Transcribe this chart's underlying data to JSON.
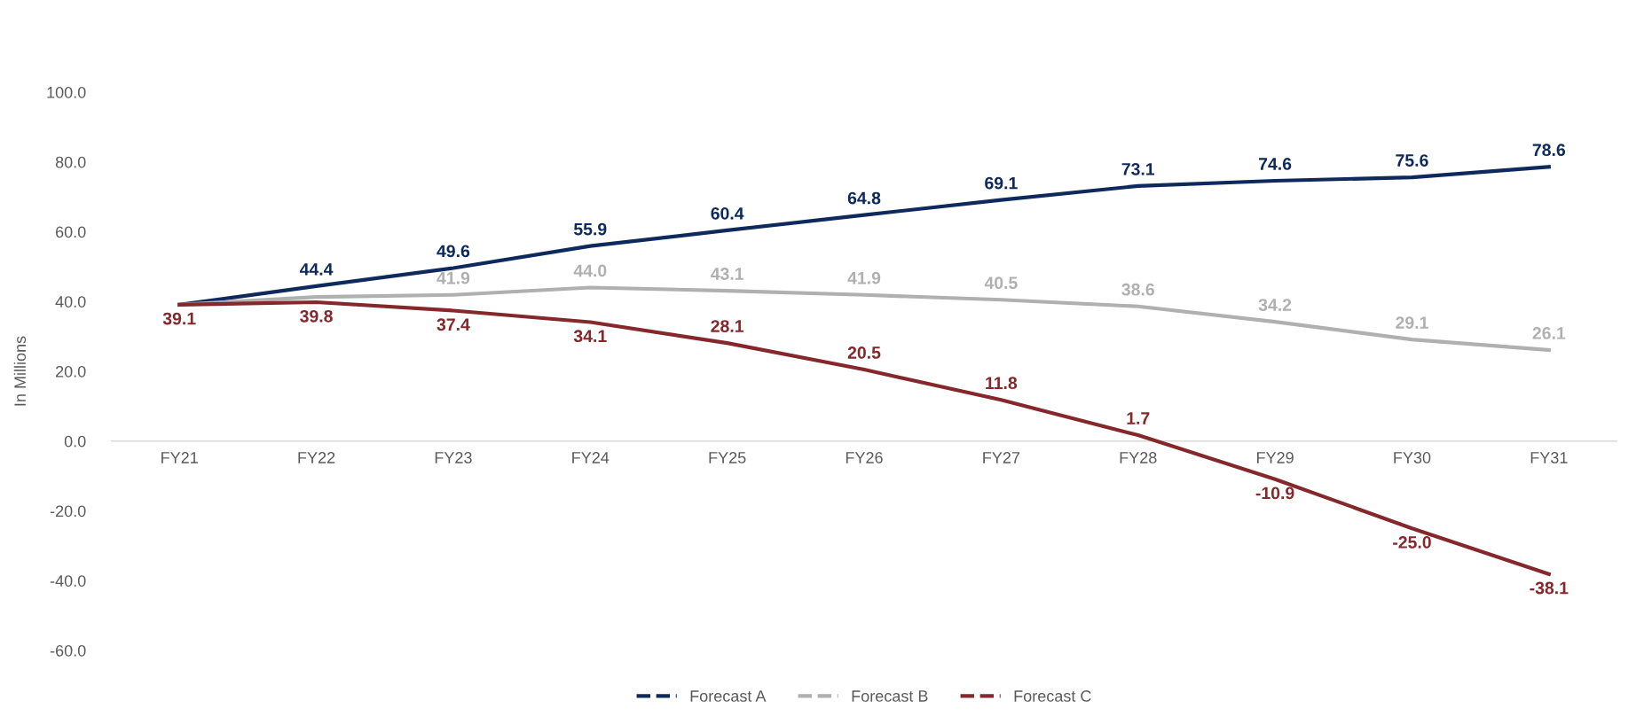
{
  "chart_data": {
    "type": "line",
    "ylabel": "In Millions",
    "categories": [
      "FY21",
      "FY22",
      "FY23",
      "FY24",
      "FY25",
      "FY26",
      "FY27",
      "FY28",
      "FY29",
      "FY30",
      "FY31"
    ],
    "series": [
      {
        "name": "Forecast A",
        "color": "#0e2a5c",
        "values": [
          39.1,
          44.4,
          49.6,
          55.9,
          60.4,
          64.8,
          69.1,
          73.1,
          74.6,
          75.6,
          78.6
        ],
        "value_labels": [
          null,
          "44.4",
          "49.6",
          "55.9",
          "60.4",
          "64.8",
          "69.1",
          "73.1",
          "74.6",
          "75.6",
          "78.6"
        ]
      },
      {
        "name": "Forecast B",
        "color": "#b0b0b0",
        "values": [
          39.1,
          41.3,
          41.9,
          44.0,
          43.1,
          41.9,
          40.5,
          38.6,
          34.2,
          29.1,
          26.1
        ],
        "value_labels": [
          null,
          null,
          "41.9",
          "44.0",
          "43.1",
          "41.9",
          "40.5",
          "38.6",
          "34.2",
          "29.1",
          "26.1"
        ]
      },
      {
        "name": "Forecast C",
        "color": "#84282b",
        "values": [
          39.1,
          39.8,
          37.4,
          34.1,
          28.1,
          20.5,
          11.8,
          1.7,
          -10.9,
          -25.0,
          -38.1
        ],
        "value_labels": [
          "39.1",
          "39.8",
          "37.4",
          "34.1",
          "28.1",
          "20.5",
          "11.8",
          "1.7",
          "-10.9",
          "-25.0",
          "-38.1"
        ]
      }
    ],
    "ylim": [
      -60,
      100
    ],
    "yticks": [
      {
        "value": -60,
        "label": "-60.0"
      },
      {
        "value": -40,
        "label": "-40.0"
      },
      {
        "value": -20,
        "label": "-20.0"
      },
      {
        "value": 0,
        "label": "0.0"
      },
      {
        "value": 20,
        "label": "20.0"
      },
      {
        "value": 40,
        "label": "40.0"
      },
      {
        "value": 60,
        "label": "60.0"
      },
      {
        "value": 80,
        "label": "80.0"
      },
      {
        "value": 100,
        "label": "100.0"
      }
    ],
    "grid": false,
    "legend": "bottom",
    "line_style": "solid"
  }
}
